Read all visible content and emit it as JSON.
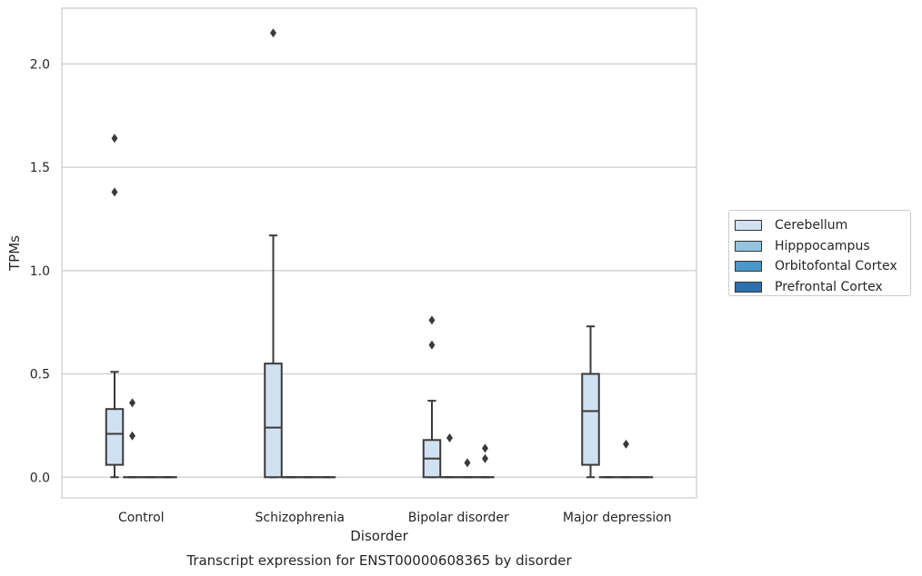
{
  "chart_data": {
    "type": "box",
    "xlabel": "Disorder",
    "ylabel": "TPMs",
    "caption": "Transcript expression for ENST00000608365 by disorder",
    "categories": [
      "Control",
      "Schizophrenia",
      "Bipolar disorder",
      "Major depression"
    ],
    "ylim": [
      -0.1,
      2.27
    ],
    "yticks": [
      0.0,
      0.5,
      1.0,
      1.5,
      2.0
    ],
    "ytick_labels": [
      "0.0",
      "0.5",
      "1.0",
      "1.5",
      "2.0"
    ],
    "grid": "horizontal",
    "legend_position": "right",
    "series": [
      {
        "name": "Cerebellum",
        "color": "#d0e1f2",
        "boxes": [
          {
            "min": 0.0,
            "q1": 0.06,
            "median": 0.21,
            "q3": 0.33,
            "max": 0.51,
            "outliers": [
              1.38,
              1.64
            ]
          },
          {
            "min": 0.0,
            "q1": 0.0,
            "median": 0.24,
            "q3": 0.55,
            "max": 1.17,
            "outliers": [
              2.15
            ]
          },
          {
            "min": 0.0,
            "q1": 0.0,
            "median": 0.09,
            "q3": 0.18,
            "max": 0.37,
            "outliers": [
              0.64,
              0.76
            ]
          },
          {
            "min": 0.0,
            "q1": 0.06,
            "median": 0.32,
            "q3": 0.5,
            "max": 0.73,
            "outliers": []
          }
        ]
      },
      {
        "name": "Hipppocampus",
        "color": "#94c4df",
        "boxes": [
          {
            "min": 0.0,
            "q1": 0.0,
            "median": 0.0,
            "q3": 0.0,
            "max": 0.0,
            "outliers": [
              0.2,
              0.36
            ]
          },
          {
            "min": 0.0,
            "q1": 0.0,
            "median": 0.0,
            "q3": 0.0,
            "max": 0.0,
            "outliers": []
          },
          {
            "min": 0.0,
            "q1": 0.0,
            "median": 0.0,
            "q3": 0.0,
            "max": 0.0,
            "outliers": [
              0.19
            ]
          },
          {
            "min": 0.0,
            "q1": 0.0,
            "median": 0.0,
            "q3": 0.0,
            "max": 0.0,
            "outliers": []
          }
        ]
      },
      {
        "name": "Orbitofontal Cortex",
        "color": "#4a98c9",
        "boxes": [
          {
            "min": 0.0,
            "q1": 0.0,
            "median": 0.0,
            "q3": 0.0,
            "max": 0.0,
            "outliers": []
          },
          {
            "min": 0.0,
            "q1": 0.0,
            "median": 0.0,
            "q3": 0.0,
            "max": 0.0,
            "outliers": []
          },
          {
            "min": 0.0,
            "q1": 0.0,
            "median": 0.0,
            "q3": 0.0,
            "max": 0.0,
            "outliers": [
              0.07
            ]
          },
          {
            "min": 0.0,
            "q1": 0.0,
            "median": 0.0,
            "q3": 0.0,
            "max": 0.0,
            "outliers": [
              0.16
            ]
          }
        ]
      },
      {
        "name": "Prefrontal Cortex",
        "color": "#2e6fae",
        "boxes": [
          {
            "min": 0.0,
            "q1": 0.0,
            "median": 0.0,
            "q3": 0.0,
            "max": 0.0,
            "outliers": []
          },
          {
            "min": 0.0,
            "q1": 0.0,
            "median": 0.0,
            "q3": 0.0,
            "max": 0.0,
            "outliers": []
          },
          {
            "min": 0.0,
            "q1": 0.0,
            "median": 0.0,
            "q3": 0.0,
            "max": 0.0,
            "outliers": [
              0.09,
              0.14
            ]
          },
          {
            "min": 0.0,
            "q1": 0.0,
            "median": 0.0,
            "q3": 0.0,
            "max": 0.0,
            "outliers": []
          }
        ]
      }
    ]
  }
}
